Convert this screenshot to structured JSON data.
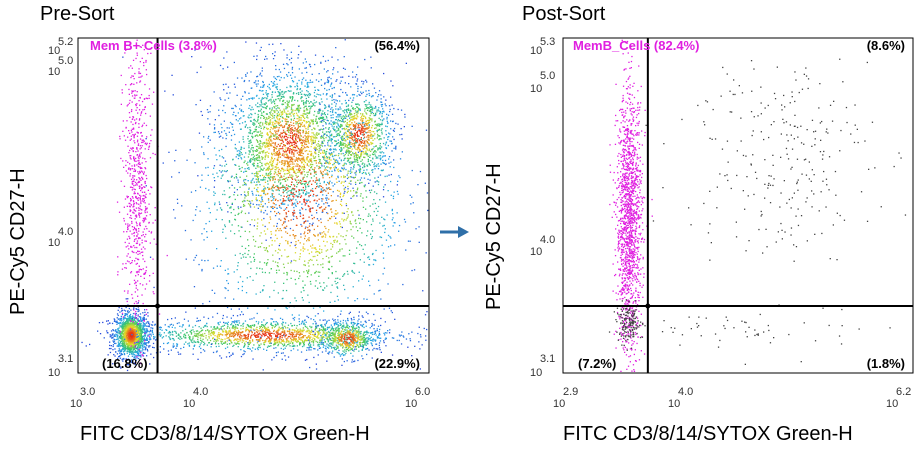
{
  "colors": {
    "gate": "#e020e0",
    "arrow": "#2f6fa8",
    "axis": "#000000",
    "ungated": "#444444"
  },
  "arrow": {
    "icon": "right-arrow-icon"
  },
  "chart_data": [
    {
      "type": "scatter",
      "title": "Pre-Sort",
      "xlabel": "FITC CD3/8/14/SYTOX Green-H",
      "ylabel": "PE-Cy5 CD27-H",
      "x_scale": "log10",
      "y_scale": "log10",
      "xlim": [
        3.0,
        6.0
      ],
      "ylim": [
        3.1,
        5.2
      ],
      "x_ticks": [
        {
          "base": "10",
          "exp": "3.0",
          "value": 3.0
        },
        {
          "base": "10",
          "exp": "4.0",
          "value": 4.0
        },
        {
          "base": "10",
          "exp": "6.0",
          "value": 6.0
        }
      ],
      "y_ticks": [
        {
          "base": "10",
          "exp": "3.1",
          "value": 3.1
        },
        {
          "base": "10",
          "exp": "4.0",
          "value": 4.0
        },
        {
          "base": "10",
          "exp": "5.0",
          "value": 5.0
        },
        {
          "base": "10",
          "exp": "5.2",
          "value": 5.2
        }
      ],
      "gate_x": 3.68,
      "gate_y": 3.52,
      "gate_label": "Mem B+ Cells (3.8%)",
      "quadrants": {
        "upper_right": "(56.4%)",
        "lower_left": "(16.8%)",
        "lower_right": "(22.9%)"
      },
      "populations": [
        {
          "name": "lower-left",
          "x": 3.45,
          "y": 3.34,
          "sx": 0.07,
          "sy": 0.07,
          "n": 1500,
          "density": true
        },
        {
          "name": "lower-band",
          "x": 4.6,
          "y": 3.34,
          "sx": 0.55,
          "sy": 0.05,
          "n": 1500,
          "density": true
        },
        {
          "name": "lower-right-blob",
          "x": 5.3,
          "y": 3.32,
          "sx": 0.12,
          "sy": 0.06,
          "n": 500,
          "density": true
        },
        {
          "name": "upper-blob-1",
          "x": 4.8,
          "y": 4.55,
          "sx": 0.25,
          "sy": 0.22,
          "n": 2000,
          "density": true
        },
        {
          "name": "upper-blob-2",
          "x": 5.4,
          "y": 4.6,
          "sx": 0.14,
          "sy": 0.14,
          "n": 900,
          "density": true
        },
        {
          "name": "upper-spread",
          "x": 4.9,
          "y": 4.2,
          "sx": 0.45,
          "sy": 0.42,
          "n": 1800,
          "density": true
        },
        {
          "name": "gate-pink",
          "x": 3.5,
          "y": 4.25,
          "sx": 0.06,
          "sy": 0.45,
          "n": 700,
          "color": "#e020e0"
        }
      ]
    },
    {
      "type": "scatter",
      "title": "Post-Sort",
      "xlabel": "FITC CD3/8/14/SYTOX Green-H",
      "ylabel": "PE-Cy5 CD27-H",
      "x_scale": "log10",
      "y_scale": "log10",
      "xlim": [
        2.9,
        6.2
      ],
      "ylim": [
        3.1,
        5.3
      ],
      "x_ticks": [
        {
          "base": "10",
          "exp": "2.9",
          "value": 2.9
        },
        {
          "base": "10",
          "exp": "4.0",
          "value": 4.0
        },
        {
          "base": "10",
          "exp": "6.2",
          "value": 6.2
        }
      ],
      "y_ticks": [
        {
          "base": "10",
          "exp": "3.1",
          "value": 3.1
        },
        {
          "base": "10",
          "exp": "4.0",
          "value": 4.0
        },
        {
          "base": "10",
          "exp": "5.0",
          "value": 5.0
        },
        {
          "base": "10",
          "exp": "5.3",
          "value": 5.3
        }
      ],
      "gate_x": 3.7,
      "gate_y": 3.54,
      "gate_label": "MemB_Cells (82.4%)",
      "quadrants": {
        "upper_right": "(8.6%)",
        "lower_left": "(7.2%)",
        "lower_right": "(1.8%)"
      },
      "populations": [
        {
          "name": "gate-pink",
          "x": 3.52,
          "y": 4.1,
          "sx": 0.06,
          "sy": 0.42,
          "n": 1500,
          "color": "#e020e0"
        },
        {
          "name": "lower-left-gray",
          "x": 3.52,
          "y": 3.43,
          "sx": 0.06,
          "sy": 0.06,
          "n": 150,
          "color": "#444444"
        },
        {
          "name": "upper-right-gray",
          "x": 4.9,
          "y": 4.55,
          "sx": 0.45,
          "sy": 0.35,
          "n": 260,
          "color": "#444444"
        },
        {
          "name": "lower-right-gray",
          "x": 4.8,
          "y": 3.38,
          "sx": 0.55,
          "sy": 0.08,
          "n": 55,
          "color": "#444444"
        }
      ]
    }
  ]
}
